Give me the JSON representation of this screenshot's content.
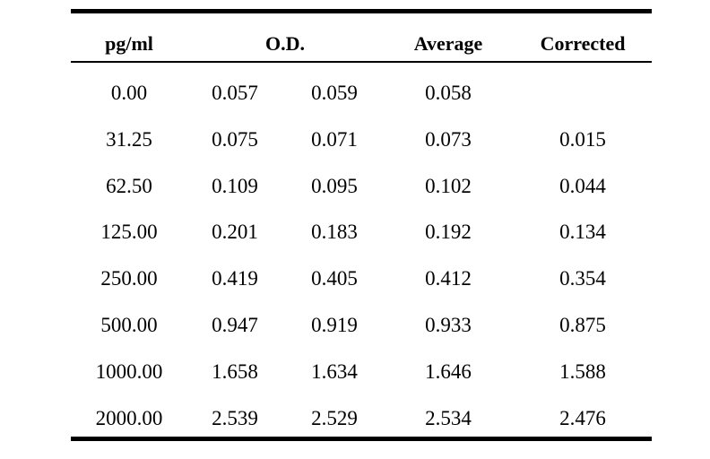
{
  "table": {
    "headers": {
      "pgml": "pg/ml",
      "od": "O.D.",
      "average": "Average",
      "corrected": "Corrected"
    },
    "rows": [
      {
        "pgml": "0.00",
        "od1": "0.057",
        "od2": "0.059",
        "average": "0.058",
        "corrected": ""
      },
      {
        "pgml": "31.25",
        "od1": "0.075",
        "od2": "0.071",
        "average": "0.073",
        "corrected": "0.015"
      },
      {
        "pgml": "62.50",
        "od1": "0.109",
        "od2": "0.095",
        "average": "0.102",
        "corrected": "0.044"
      },
      {
        "pgml": "125.00",
        "od1": "0.201",
        "od2": "0.183",
        "average": "0.192",
        "corrected": "0.134"
      },
      {
        "pgml": "250.00",
        "od1": "0.419",
        "od2": "0.405",
        "average": "0.412",
        "corrected": "0.354"
      },
      {
        "pgml": "500.00",
        "od1": "0.947",
        "od2": "0.919",
        "average": "0.933",
        "corrected": "0.875"
      },
      {
        "pgml": "1000.00",
        "od1": "1.658",
        "od2": "1.634",
        "average": "1.646",
        "corrected": "1.588"
      },
      {
        "pgml": "2000.00",
        "od1": "2.539",
        "od2": "2.529",
        "average": "2.534",
        "corrected": "2.476"
      }
    ]
  }
}
